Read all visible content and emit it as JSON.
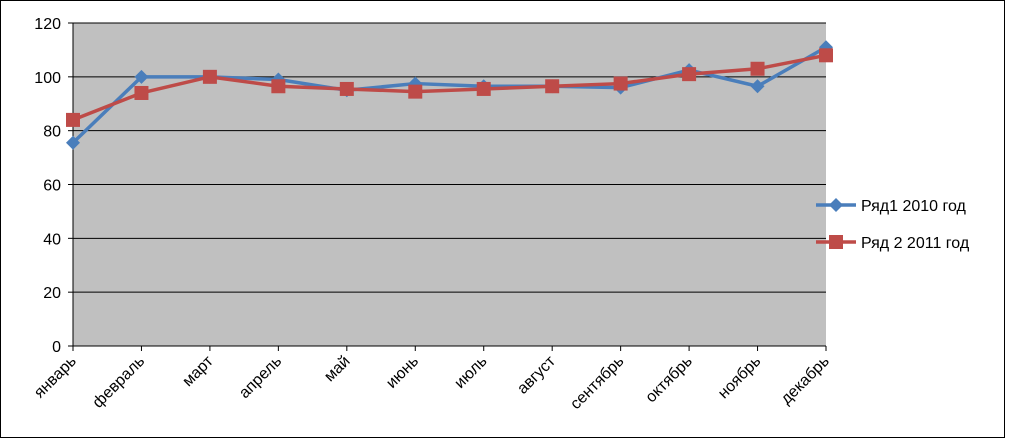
{
  "chart_data": {
    "type": "line",
    "categories": [
      "январь",
      "февраль",
      "март",
      "апрель",
      "май",
      "июнь",
      "июль",
      "август",
      "сентябрь",
      "октябрь",
      "ноябрь",
      "декабрь"
    ],
    "series": [
      {
        "name": "Ряд1 2010 год",
        "color": "#4a7ebb",
        "marker": "diamond",
        "values": [
          75.5,
          100,
          100,
          99,
          95,
          97.5,
          96.5,
          96.5,
          96,
          102.5,
          96.5,
          111
        ]
      },
      {
        "name": "Ряд 2 2011 год",
        "color": "#be4b48",
        "marker": "square",
        "values": [
          84,
          94,
          100,
          96.5,
          95.5,
          94.5,
          95.5,
          96.5,
          97.5,
          101,
          103,
          108
        ]
      }
    ],
    "ylim": [
      0,
      120
    ],
    "yticks": [
      0,
      20,
      40,
      60,
      80,
      100,
      120
    ],
    "grid": true,
    "legend": "right"
  }
}
